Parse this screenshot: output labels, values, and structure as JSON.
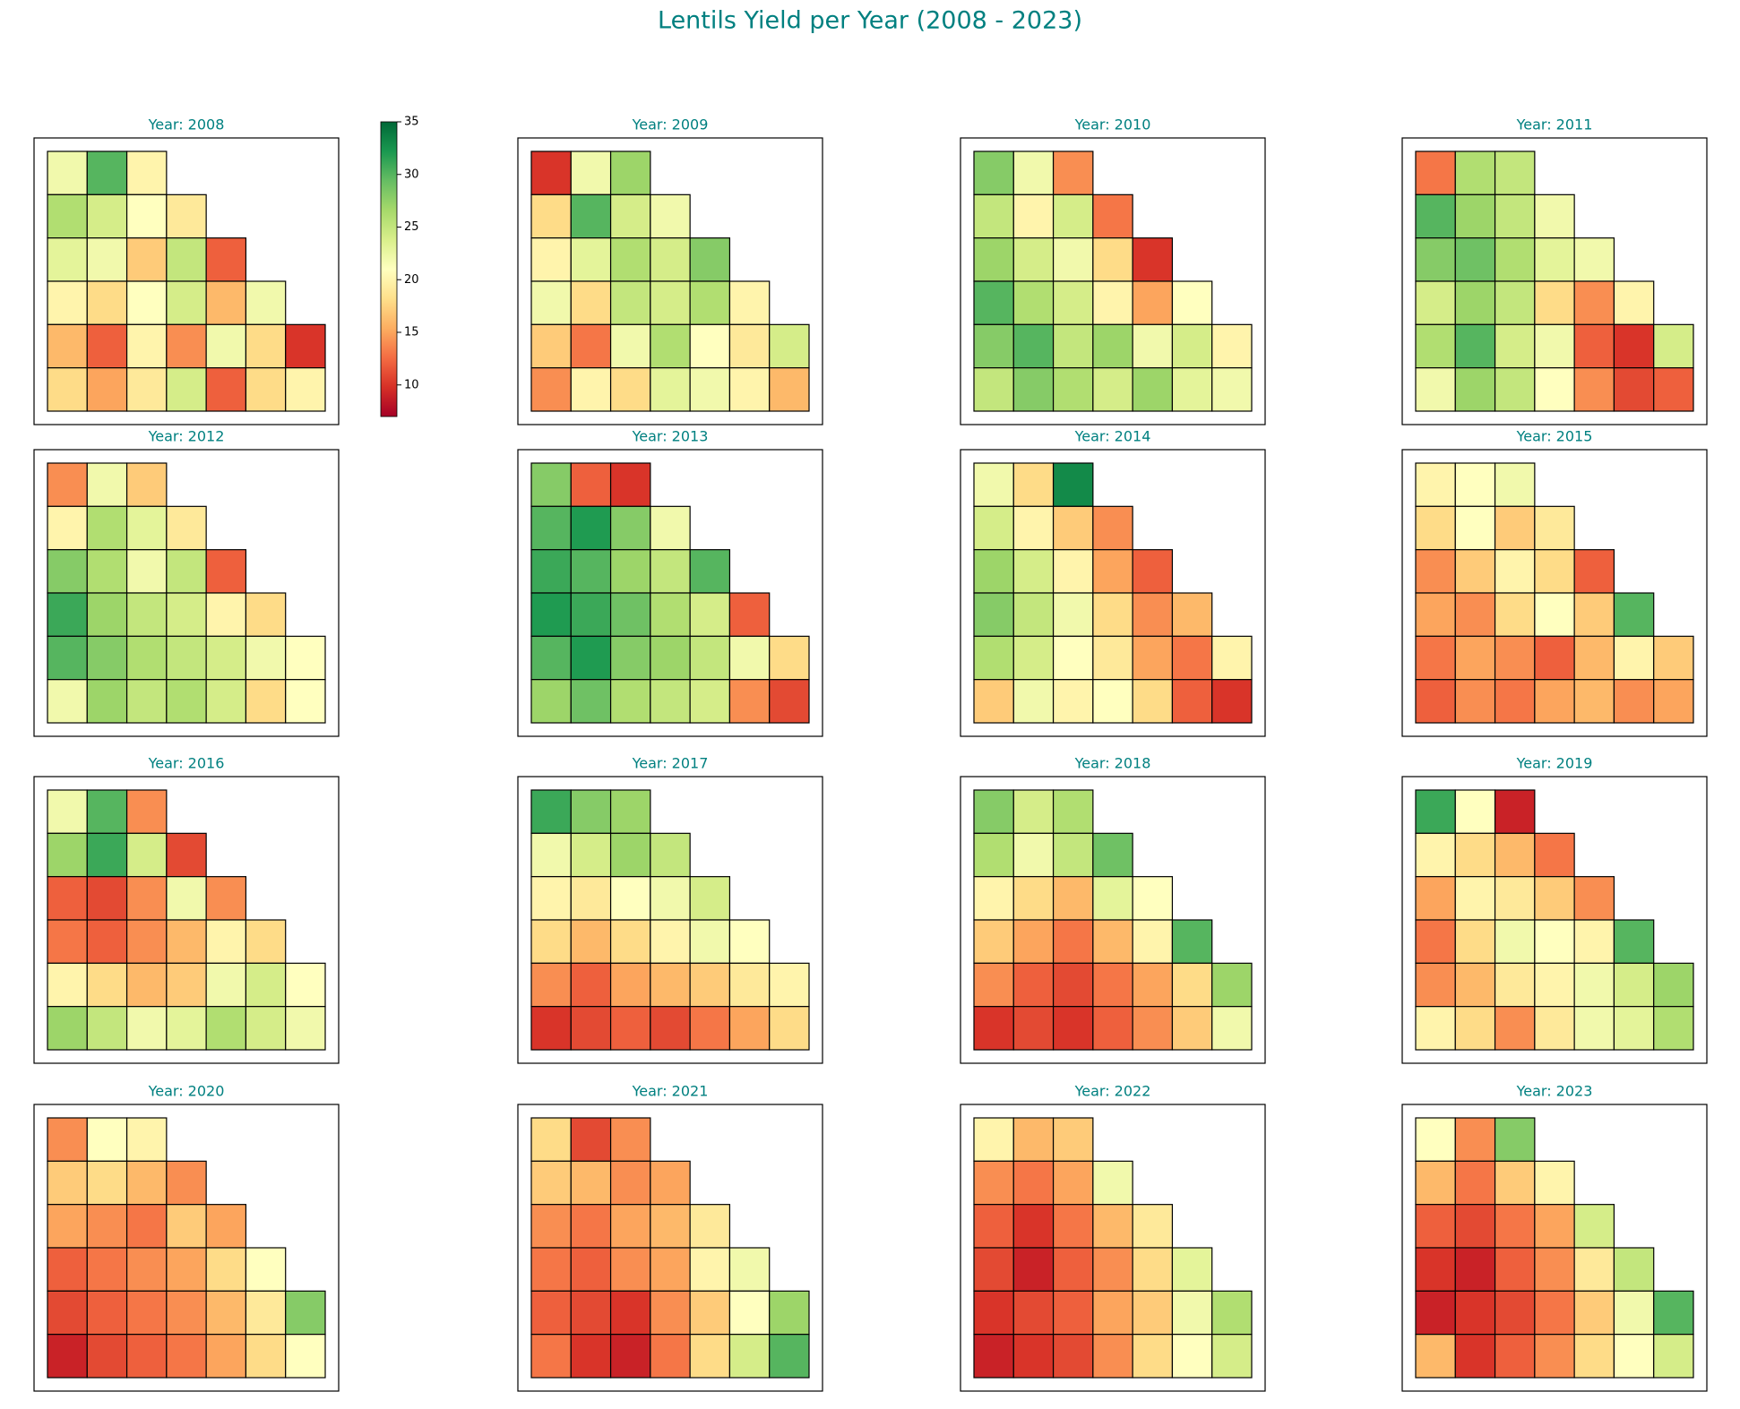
{
  "chart_data": {
    "type": "choropleth",
    "title": "Lentils Yield per Year (2008 - 2023)",
    "clim": [
      7,
      35
    ],
    "cticks": [
      10,
      15,
      20,
      25,
      30,
      35
    ],
    "colormap": [
      "#a50026",
      "#d73027",
      "#f46d43",
      "#fdae61",
      "#fee08b",
      "#ffffbf",
      "#d9ef8b",
      "#a6d96a",
      "#66bd63",
      "#1a9850",
      "#006837"
    ],
    "panels": [
      {
        "title": "Year: 2008",
        "values": [
          [
            22,
            30,
            20
          ],
          [
            26,
            24,
            21,
            19
          ],
          [
            23,
            22,
            17,
            25,
            12
          ],
          [
            20,
            18,
            21,
            24,
            16,
            22
          ],
          [
            16,
            12,
            20,
            14,
            22,
            18,
            10
          ],
          [
            18,
            15,
            19,
            24,
            12,
            18,
            20
          ]
        ]
      },
      {
        "title": "Year: 2009",
        "values": [
          [
            10,
            22,
            27
          ],
          [
            18,
            30,
            24,
            22
          ],
          [
            20,
            23,
            26,
            24,
            28
          ],
          [
            22,
            18,
            25,
            24,
            26,
            20
          ],
          [
            17,
            13,
            22,
            26,
            21,
            19,
            24
          ],
          [
            14,
            20,
            18,
            23,
            22,
            20,
            16
          ]
        ]
      },
      {
        "title": "Year: 2010",
        "values": [
          [
            28,
            22,
            14
          ],
          [
            25,
            20,
            24,
            13
          ],
          [
            27,
            24,
            22,
            18,
            10
          ],
          [
            30,
            26,
            24,
            20,
            15,
            21
          ],
          [
            28,
            30,
            25,
            27,
            22,
            24,
            20
          ],
          [
            25,
            28,
            26,
            24,
            27,
            23,
            22
          ]
        ]
      },
      {
        "title": "Year: 2011",
        "values": [
          [
            13,
            26,
            25
          ],
          [
            30,
            27,
            25,
            22
          ],
          [
            28,
            29,
            26,
            23,
            22
          ],
          [
            24,
            27,
            25,
            18,
            14,
            20
          ],
          [
            26,
            30,
            24,
            22,
            12,
            10,
            24
          ],
          [
            22,
            27,
            25,
            21,
            14,
            11,
            12
          ]
        ]
      },
      {
        "title": "Year: 2012",
        "values": [
          [
            14,
            22,
            17
          ],
          [
            20,
            26,
            23,
            19
          ],
          [
            28,
            26,
            22,
            25,
            12
          ],
          [
            31,
            27,
            25,
            24,
            20,
            18
          ],
          [
            30,
            28,
            26,
            25,
            24,
            22,
            21
          ],
          [
            22,
            27,
            25,
            26,
            24,
            18,
            21
          ]
        ]
      },
      {
        "title": "Year: 2013",
        "values": [
          [
            28,
            12,
            10
          ],
          [
            30,
            32,
            28,
            22
          ],
          [
            31,
            30,
            27,
            25,
            30
          ],
          [
            32,
            31,
            29,
            26,
            24,
            12
          ],
          [
            30,
            32,
            28,
            27,
            25,
            22,
            18
          ],
          [
            27,
            29,
            26,
            25,
            24,
            14,
            11
          ]
        ]
      },
      {
        "title": "Year: 2014",
        "values": [
          [
            22,
            18,
            33
          ],
          [
            24,
            20,
            17,
            14
          ],
          [
            27,
            24,
            20,
            15,
            12
          ],
          [
            28,
            25,
            22,
            18,
            14,
            16
          ],
          [
            26,
            24,
            21,
            19,
            15,
            13,
            20
          ],
          [
            17,
            22,
            20,
            21,
            18,
            12,
            10
          ]
        ]
      },
      {
        "title": "Year: 2015",
        "values": [
          [
            20,
            21,
            22
          ],
          [
            18,
            21,
            17,
            19
          ],
          [
            14,
            17,
            20,
            18,
            12
          ],
          [
            15,
            14,
            18,
            21,
            17,
            30
          ],
          [
            13,
            15,
            14,
            12,
            16,
            20,
            17
          ],
          [
            12,
            14,
            13,
            15,
            16,
            14,
            15
          ]
        ]
      },
      {
        "title": "Year: 2016",
        "values": [
          [
            22,
            30,
            14
          ],
          [
            27,
            31,
            24,
            11
          ],
          [
            12,
            11,
            14,
            22,
            14
          ],
          [
            13,
            12,
            14,
            16,
            20,
            18
          ],
          [
            20,
            18,
            16,
            17,
            22,
            24,
            21
          ],
          [
            27,
            25,
            22,
            23,
            26,
            24,
            22
          ]
        ]
      },
      {
        "title": "Year: 2017",
        "values": [
          [
            31,
            28,
            27
          ],
          [
            22,
            24,
            27,
            25
          ],
          [
            20,
            19,
            21,
            22,
            24
          ],
          [
            18,
            16,
            18,
            20,
            22,
            21
          ],
          [
            14,
            12,
            15,
            16,
            17,
            19,
            20
          ],
          [
            10,
            11,
            12,
            11,
            13,
            15,
            18
          ]
        ]
      },
      {
        "title": "Year: 2018",
        "values": [
          [
            28,
            24,
            26
          ],
          [
            26,
            22,
            25,
            29
          ],
          [
            20,
            18,
            16,
            23,
            21
          ],
          [
            17,
            15,
            13,
            16,
            20,
            30
          ],
          [
            14,
            12,
            11,
            13,
            15,
            18,
            27
          ],
          [
            10,
            11,
            10,
            12,
            14,
            17,
            22
          ]
        ]
      },
      {
        "title": "Year: 2019",
        "values": [
          [
            31,
            21,
            9
          ],
          [
            20,
            18,
            16,
            13
          ],
          [
            15,
            20,
            19,
            17,
            14
          ],
          [
            13,
            18,
            22,
            21,
            20,
            30
          ],
          [
            14,
            16,
            19,
            20,
            22,
            24,
            27
          ],
          [
            20,
            18,
            14,
            19,
            22,
            23,
            26
          ]
        ]
      },
      {
        "title": "Year: 2020",
        "values": [
          [
            14,
            21,
            20
          ],
          [
            17,
            18,
            16,
            14
          ],
          [
            15,
            14,
            13,
            17,
            15
          ],
          [
            12,
            13,
            14,
            15,
            18,
            21
          ],
          [
            11,
            12,
            13,
            14,
            16,
            19,
            28
          ],
          [
            9,
            11,
            12,
            13,
            15,
            18,
            21
          ]
        ]
      },
      {
        "title": "Year: 2021",
        "values": [
          [
            18,
            11,
            14
          ],
          [
            17,
            16,
            14,
            15
          ],
          [
            14,
            13,
            15,
            16,
            19
          ],
          [
            13,
            12,
            14,
            15,
            20,
            22
          ],
          [
            12,
            11,
            10,
            14,
            17,
            21,
            27
          ],
          [
            13,
            10,
            9,
            13,
            18,
            24,
            30
          ]
        ]
      },
      {
        "title": "Year: 2022",
        "values": [
          [
            20,
            16,
            17
          ],
          [
            14,
            13,
            15,
            22
          ],
          [
            12,
            10,
            13,
            16,
            19
          ],
          [
            11,
            9,
            12,
            14,
            18,
            23
          ],
          [
            10,
            11,
            12,
            15,
            17,
            22,
            26
          ],
          [
            9,
            10,
            11,
            14,
            18,
            21,
            24
          ]
        ]
      },
      {
        "title": "Year: 2023",
        "values": [
          [
            21,
            14,
            28
          ],
          [
            16,
            13,
            17,
            20
          ],
          [
            12,
            11,
            13,
            15,
            24
          ],
          [
            10,
            9,
            12,
            14,
            19,
            25
          ],
          [
            9,
            10,
            11,
            13,
            17,
            22,
            30
          ],
          [
            16,
            10,
            12,
            14,
            18,
            21,
            24
          ]
        ]
      }
    ]
  }
}
